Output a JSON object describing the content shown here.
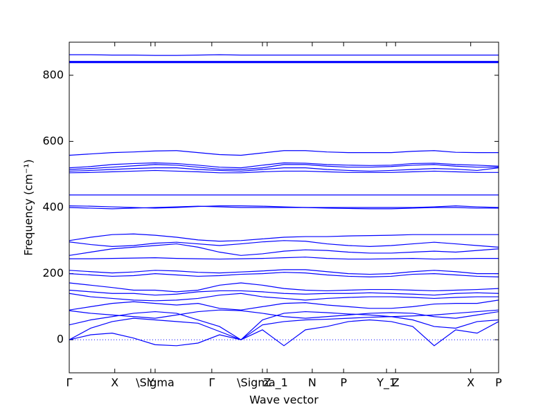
{
  "chart_data": {
    "type": "line",
    "xlabel": "Wave vector",
    "ylabel": "Frequency (cm⁻¹)",
    "xlim": [
      0,
      1
    ],
    "ylim": [
      -100,
      900
    ],
    "xticks": [
      {
        "value": 0,
        "label": "Γ"
      },
      {
        "value": 0.106,
        "label": "X"
      },
      {
        "value": 0.19,
        "label": "Y"
      },
      {
        "value": 0.2,
        "label": "\\Sigma"
      },
      {
        "value": 0.332,
        "label": "Γ"
      },
      {
        "value": 0.45,
        "label": "\\Sigma_1"
      },
      {
        "value": 0.461,
        "label": "Z"
      },
      {
        "value": 0.566,
        "label": "N"
      },
      {
        "value": 0.639,
        "label": "P"
      },
      {
        "value": 0.739,
        "label": "Y_1"
      },
      {
        "value": 0.76,
        "label": "Z"
      },
      {
        "value": 0.935,
        "label": "X"
      },
      {
        "value": 1,
        "label": "P"
      }
    ],
    "yticks": [
      0,
      200,
      400,
      600,
      800
    ],
    "zero_line": true,
    "x": [
      0,
      0.05,
      0.1,
      0.15,
      0.2,
      0.25,
      0.3,
      0.35,
      0.4,
      0.45,
      0.5,
      0.55,
      0.6,
      0.65,
      0.7,
      0.75,
      0.8,
      0.85,
      0.9,
      0.95,
      1
    ],
    "series": [
      {
        "color": "#0000ff",
        "values": [
          862,
          862,
          861,
          861,
          860,
          860,
          861,
          862,
          861,
          861,
          861,
          861,
          861,
          861,
          861,
          861,
          861,
          861,
          861,
          861,
          861
        ]
      },
      {
        "color": "#0000ff",
        "values": [
          842,
          842,
          842,
          842,
          842,
          842,
          842,
          842,
          842,
          842,
          842,
          842,
          842,
          842,
          842,
          842,
          842,
          842,
          842,
          842,
          842
        ]
      },
      {
        "color": "#0000ff",
        "values": [
          840,
          840,
          840,
          840,
          840,
          840,
          840,
          840,
          840,
          840,
          840,
          840,
          840,
          840,
          840,
          840,
          840,
          840,
          840,
          840,
          840
        ]
      },
      {
        "color": "#0000ff",
        "values": [
          838,
          838,
          838,
          838,
          838,
          838,
          838,
          838,
          838,
          838,
          838,
          838,
          838,
          838,
          838,
          838,
          838,
          838,
          838,
          838,
          838
        ]
      },
      {
        "color": "#0000ff",
        "values": [
          558,
          562,
          566,
          568,
          571,
          572,
          566,
          560,
          558,
          565,
          572,
          572,
          568,
          566,
          566,
          566,
          570,
          572,
          567,
          566,
          566
        ]
      },
      {
        "color": "#0000ff",
        "values": [
          520,
          524,
          530,
          533,
          535,
          533,
          528,
          522,
          520,
          528,
          535,
          534,
          530,
          528,
          527,
          528,
          533,
          534,
          530,
          528,
          525
        ]
      },
      {
        "color": "#0000ff",
        "values": [
          515,
          518,
          522,
          526,
          530,
          528,
          522,
          516,
          515,
          520,
          530,
          530,
          525,
          522,
          522,
          524,
          528,
          530,
          525,
          522,
          522
        ]
      },
      {
        "color": "#0000ff",
        "values": [
          510,
          512,
          515,
          518,
          520,
          520,
          515,
          512,
          510,
          515,
          520,
          520,
          515,
          512,
          510,
          512,
          515,
          518,
          516,
          512,
          520
        ]
      },
      {
        "color": "#0000ff",
        "values": [
          505,
          506,
          508,
          510,
          512,
          510,
          508,
          505,
          505,
          508,
          510,
          510,
          508,
          506,
          506,
          506,
          508,
          510,
          508,
          506,
          506
        ]
      },
      {
        "color": "#0000ff",
        "values": [
          438,
          438,
          438,
          438,
          438,
          438,
          438,
          438,
          438,
          438,
          438,
          438,
          438,
          438,
          438,
          438,
          438,
          438,
          438,
          438,
          438
        ]
      },
      {
        "color": "#0000ff",
        "values": [
          405,
          404,
          402,
          400,
          398,
          400,
          403,
          405,
          405,
          404,
          402,
          400,
          400,
          400,
          400,
          400,
          400,
          402,
          405,
          402,
          400
        ]
      },
      {
        "color": "#0000ff",
        "values": [
          400,
          398,
          396,
          398,
          400,
          402,
          404,
          402,
          400,
          400,
          400,
          400,
          398,
          397,
          396,
          396,
          398,
          400,
          400,
          398,
          398
        ]
      },
      {
        "color": "#0000ff",
        "values": [
          300,
          310,
          318,
          320,
          316,
          310,
          302,
          298,
          300,
          305,
          310,
          312,
          312,
          314,
          315,
          316,
          318,
          318,
          318,
          318,
          318
        ]
      },
      {
        "color": "#0000ff",
        "values": [
          296,
          288,
          282,
          285,
          292,
          295,
          290,
          285,
          290,
          296,
          300,
          298,
          290,
          285,
          282,
          285,
          290,
          295,
          290,
          285,
          280
        ]
      },
      {
        "color": "#0000ff",
        "values": [
          255,
          265,
          275,
          280,
          285,
          290,
          280,
          265,
          255,
          260,
          268,
          272,
          270,
          265,
          262,
          262,
          265,
          268,
          265,
          270,
          275
        ]
      },
      {
        "color": "#0000ff",
        "values": [
          245,
          245,
          246,
          247,
          248,
          246,
          245,
          244,
          245,
          246,
          248,
          250,
          246,
          244,
          244,
          245,
          246,
          244,
          245,
          246,
          246
        ]
      },
      {
        "color": "#0000ff",
        "values": [
          210,
          206,
          202,
          205,
          210,
          208,
          204,
          202,
          205,
          208,
          212,
          212,
          206,
          200,
          198,
          200,
          206,
          210,
          206,
          200,
          200
        ]
      },
      {
        "color": "#0000ff",
        "values": [
          200,
          196,
          192,
          194,
          200,
          196,
          192,
          194,
          198,
          200,
          204,
          202,
          196,
          192,
          190,
          192,
          198,
          200,
          196,
          192,
          190
        ]
      },
      {
        "color": "#0000ff",
        "values": [
          172,
          165,
          158,
          150,
          150,
          145,
          150,
          165,
          172,
          165,
          155,
          150,
          148,
          150,
          152,
          152,
          150,
          148,
          150,
          152,
          155
        ]
      },
      {
        "color": "#0000ff",
        "values": [
          150,
          145,
          140,
          140,
          135,
          138,
          145,
          148,
          148,
          145,
          140,
          138,
          140,
          140,
          142,
          140,
          138,
          135,
          140,
          142,
          140
        ]
      },
      {
        "color": "#0000ff",
        "values": [
          140,
          130,
          125,
          120,
          118,
          120,
          125,
          135,
          140,
          130,
          125,
          120,
          125,
          128,
          130,
          130,
          128,
          125,
          128,
          130,
          130
        ]
      },
      {
        "color": "#0000ff",
        "values": [
          90,
          100,
          110,
          115,
          110,
          105,
          110,
          95,
          90,
          100,
          110,
          112,
          105,
          100,
          95,
          95,
          100,
          108,
          110,
          110,
          120
        ]
      },
      {
        "color": "#0000ff",
        "values": [
          88,
          80,
          75,
          70,
          65,
          75,
          85,
          90,
          88,
          80,
          70,
          65,
          70,
          75,
          80,
          82,
          80,
          70,
          65,
          75,
          85
        ]
      },
      {
        "color": "#0000ff",
        "values": [
          45,
          60,
          70,
          80,
          85,
          80,
          60,
          40,
          0,
          60,
          80,
          85,
          82,
          78,
          75,
          70,
          72,
          75,
          80,
          85,
          90
        ]
      },
      {
        "color": "#0000ff",
        "values": [
          0,
          35,
          55,
          65,
          60,
          55,
          50,
          25,
          0,
          45,
          55,
          60,
          62,
          65,
          68,
          70,
          60,
          40,
          35,
          55,
          60
        ]
      },
      {
        "color": "#0000ff",
        "values": [
          0,
          15,
          20,
          5,
          -15,
          -18,
          -10,
          15,
          0,
          30,
          -18,
          30,
          40,
          55,
          60,
          55,
          40,
          -18,
          30,
          20,
          55
        ]
      }
    ]
  }
}
